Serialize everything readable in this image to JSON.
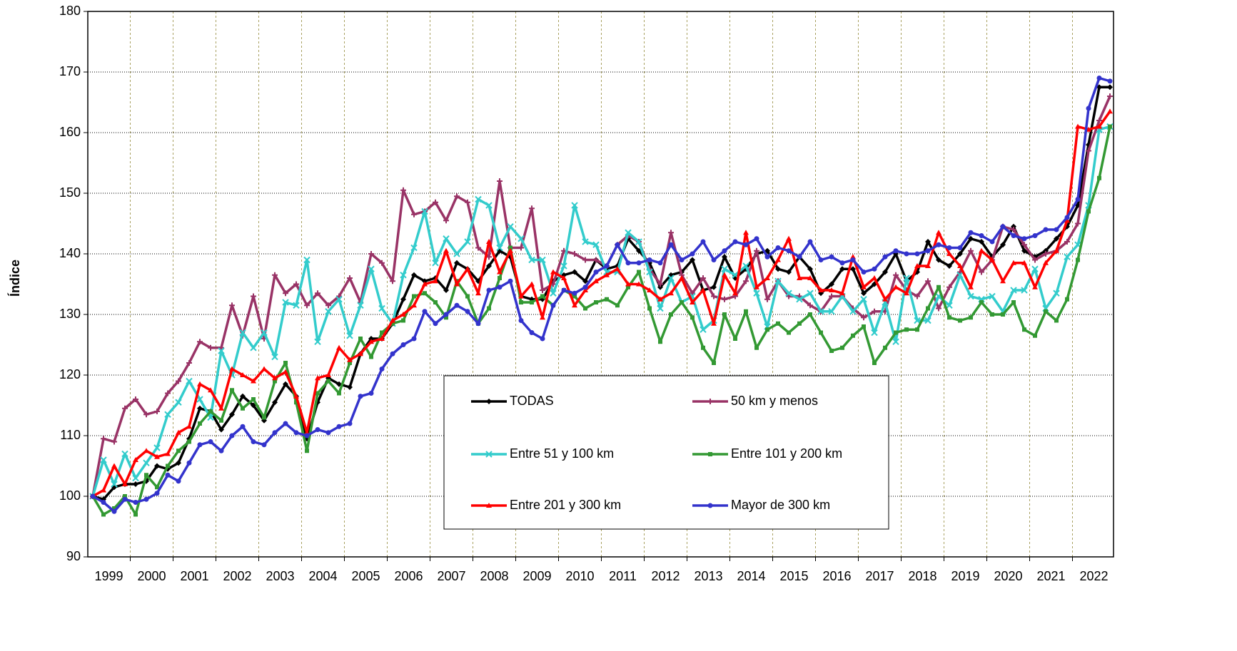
{
  "chart_data": {
    "type": "line",
    "y_label": "Índice",
    "categories": [
      "1999",
      null,
      null,
      null,
      "2000",
      null,
      null,
      null,
      "2001",
      null,
      null,
      null,
      "2002",
      null,
      null,
      null,
      "2003",
      null,
      null,
      null,
      "2004",
      null,
      null,
      null,
      "2005",
      null,
      null,
      null,
      "2006",
      null,
      null,
      null,
      "2007",
      null,
      null,
      null,
      "2008",
      null,
      null,
      null,
      "2009",
      null,
      null,
      null,
      "2010",
      null,
      null,
      null,
      "2011",
      null,
      null,
      null,
      "2012",
      null,
      null,
      null,
      "2013",
      null,
      null,
      null,
      "2014",
      null,
      null,
      null,
      "2015",
      null,
      null,
      null,
      "2016",
      null,
      null,
      null,
      "2017",
      null,
      null,
      null,
      "2018",
      null,
      null,
      null,
      "2019",
      null,
      null,
      null,
      "2020",
      null,
      null,
      null,
      "2021",
      null,
      null,
      null,
      "2022",
      null,
      null,
      null
    ],
    "ylim": [
      90,
      180
    ],
    "yticks": [
      90,
      100,
      110,
      120,
      130,
      140,
      150,
      160,
      170,
      180
    ],
    "grid": true,
    "legend": "lower center",
    "series": [
      {
        "name": "TODAS",
        "color": "#000000",
        "marker": "diamond",
        "values": [
          100,
          99.5,
          101.5,
          102,
          102,
          102.5,
          105,
          104.5,
          105.5,
          109.5,
          114.5,
          114,
          111,
          113.5,
          116.5,
          115,
          112.5,
          115.5,
          118.5,
          116.5,
          109.5,
          115.5,
          119.5,
          118.5,
          118,
          123.5,
          126,
          126,
          128.5,
          132.5,
          136.5,
          135.5,
          136,
          134,
          138.5,
          137.5,
          135.5,
          138,
          140.5,
          139.5,
          133,
          132.5,
          132.5,
          135.5,
          136.5,
          137,
          135.5,
          139,
          137.5,
          138,
          142.5,
          140.5,
          138.5,
          134.5,
          136.5,
          137,
          139,
          134,
          134.5,
          139.5,
          136,
          137.5,
          140,
          140.5,
          137.5,
          137,
          139.5,
          137.5,
          133.5,
          135,
          137.5,
          137.5,
          133.5,
          135,
          137,
          140,
          135.5,
          137,
          142,
          139,
          138,
          140,
          142.5,
          142,
          139.5,
          141.5,
          144.5,
          140.5,
          139.5,
          140.5,
          142.5,
          144.5,
          148,
          158,
          167.5,
          167.5
        ]
      },
      {
        "name": "50 km y menos",
        "color": "#993366",
        "marker": "plus",
        "values": [
          100,
          109.5,
          109,
          114.5,
          116,
          113.5,
          114,
          117,
          119,
          122,
          125.5,
          124.5,
          124.5,
          131.5,
          126.5,
          133,
          126,
          136.5,
          133.5,
          135,
          131.5,
          133.5,
          131.5,
          133,
          136,
          132,
          140,
          138.5,
          135.5,
          150.5,
          146.5,
          147,
          148.5,
          145.5,
          149.5,
          148.5,
          141,
          139.5,
          152,
          141,
          141,
          147.5,
          134,
          135,
          140.5,
          140,
          139,
          139,
          138,
          141.5,
          143,
          142,
          137.5,
          135,
          143.5,
          136.5,
          133.5,
          136,
          133,
          132.5,
          133,
          135.5,
          140.5,
          132.5,
          135.5,
          133,
          133,
          131.5,
          130.5,
          133,
          133,
          131,
          129.5,
          130.5,
          130.5,
          136.5,
          134,
          133,
          135.5,
          131,
          134.5,
          137,
          140.5,
          137,
          139,
          144.5,
          144,
          141.5,
          139,
          140,
          140.5,
          142,
          145,
          157,
          162,
          166
        ]
      },
      {
        "name": "Entre 51 y 100 km",
        "color": "#33cccc",
        "marker": "cross",
        "values": [
          100,
          106,
          102,
          107,
          103,
          105.5,
          108,
          113.5,
          115.5,
          119,
          116,
          113,
          124,
          120,
          127,
          124.5,
          127,
          123,
          132,
          131.5,
          139,
          125.5,
          130.5,
          132.5,
          126.5,
          131.5,
          137.5,
          131,
          128.5,
          136.5,
          141,
          147,
          138.5,
          142.5,
          140,
          142,
          149,
          148,
          141,
          144.5,
          142.5,
          139,
          139,
          133.5,
          138,
          148,
          142,
          141.5,
          137,
          137,
          143.5,
          142,
          137,
          131,
          136,
          132,
          133,
          127.5,
          129,
          137.5,
          136.5,
          138,
          133.5,
          128,
          135.5,
          133.5,
          132.5,
          133.5,
          130.5,
          130.5,
          133,
          130.5,
          132.5,
          127,
          132,
          125.5,
          136,
          129,
          129,
          133,
          131.5,
          136.5,
          133,
          132.5,
          133,
          130.5,
          134,
          134,
          137.5,
          131,
          133.5,
          139.5,
          141.5,
          148,
          160.5,
          161
        ]
      },
      {
        "name": "Entre 101 y 200 km",
        "color": "#339933",
        "marker": "square",
        "values": [
          100,
          97,
          98,
          100,
          97,
          103.5,
          101.5,
          105,
          107.5,
          109,
          112,
          114,
          112.5,
          117.5,
          114.5,
          116,
          113,
          119,
          122,
          115.5,
          107.5,
          117,
          119,
          117,
          122,
          126,
          123,
          127,
          128.5,
          129,
          133,
          133.5,
          132,
          129.5,
          135.5,
          133,
          128.5,
          131,
          136,
          141,
          132,
          132,
          133,
          131.5,
          134,
          133,
          131,
          132,
          132.5,
          131.5,
          134.5,
          137,
          131,
          125.5,
          130,
          132,
          129.5,
          124.5,
          122,
          130,
          126,
          130.5,
          124.5,
          127.5,
          128.5,
          127,
          128.5,
          130,
          127,
          124,
          124.5,
          126.5,
          128,
          122,
          124.5,
          127,
          127.5,
          127.5,
          131,
          134.5,
          129.5,
          129,
          129.5,
          132,
          130,
          130,
          132,
          127.5,
          126.5,
          130.5,
          129,
          132.5,
          139,
          147,
          152.5,
          161
        ]
      },
      {
        "name": "Entre 201 y 300 km",
        "color": "#ff0000",
        "marker": "triangle",
        "values": [
          100,
          101,
          105,
          102,
          106,
          107.5,
          106.5,
          107,
          110.5,
          111.5,
          118.5,
          117.5,
          114.5,
          121,
          120,
          119,
          121,
          119.5,
          120.5,
          116.5,
          110.5,
          119.5,
          120,
          124.5,
          122.5,
          123.5,
          125.5,
          126,
          129,
          130,
          131.5,
          135,
          135.5,
          140.5,
          135,
          137.5,
          133.5,
          142,
          137,
          140.5,
          133,
          135,
          129.5,
          137,
          136,
          131.5,
          134,
          135.5,
          136.5,
          137.5,
          135,
          135,
          134,
          132.5,
          133.5,
          136,
          132,
          134,
          128.5,
          136.5,
          133.5,
          143.5,
          134.5,
          136,
          139,
          142.5,
          136,
          136,
          134,
          134,
          133.5,
          139.5,
          134.5,
          136,
          132.5,
          134.5,
          133.5,
          138,
          138,
          143.5,
          140,
          138,
          134.5,
          140.5,
          139,
          135.5,
          138.5,
          138.5,
          134.5,
          138.5,
          140.5,
          145.5,
          161,
          160.5,
          161,
          163.5
        ]
      },
      {
        "name": "Mayor de 300 km",
        "color": "#3333cc",
        "marker": "circle",
        "values": [
          100,
          99,
          97.5,
          99.5,
          99,
          99.5,
          100.5,
          103.5,
          102.5,
          105.5,
          108.5,
          109,
          107.5,
          110,
          111.5,
          109,
          108.5,
          110.5,
          112,
          110.5,
          110,
          111,
          110.5,
          111.5,
          112,
          116.5,
          117,
          121,
          123.5,
          125,
          126,
          130.5,
          128.5,
          130,
          131.5,
          130.5,
          128.5,
          134,
          134.5,
          135.5,
          129,
          127,
          126,
          131.5,
          134,
          133.5,
          134.5,
          137,
          138,
          141.5,
          138.5,
          138.5,
          139,
          138.5,
          141.5,
          139,
          140,
          142,
          139,
          140.5,
          142,
          141.5,
          142.5,
          139.5,
          141,
          140.5,
          139.5,
          142,
          139,
          139.5,
          138.5,
          139,
          137,
          137.5,
          139.5,
          140.5,
          140,
          140,
          140.5,
          141.5,
          141,
          141,
          143.5,
          143,
          142,
          144.5,
          143,
          142.5,
          143,
          144,
          144,
          146,
          149,
          164,
          169,
          168.5
        ]
      }
    ]
  }
}
